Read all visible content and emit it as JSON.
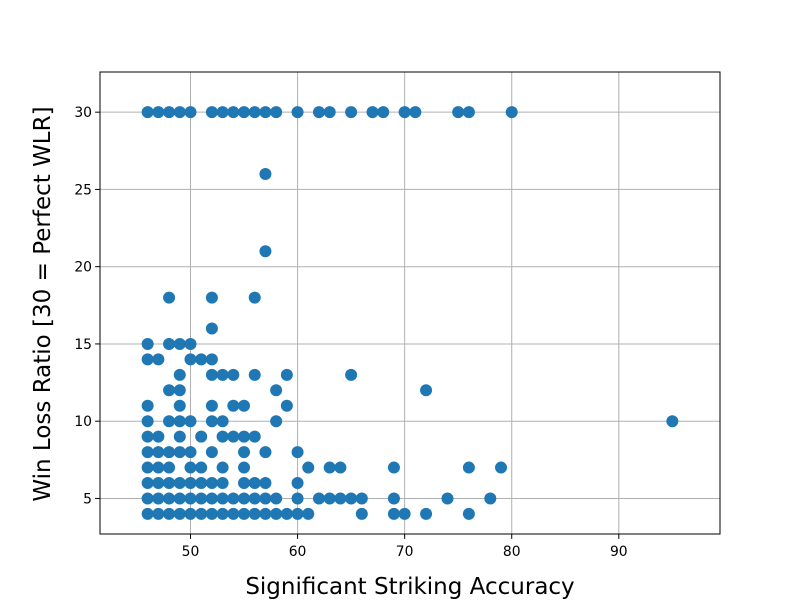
{
  "chart_data": {
    "type": "scatter",
    "title": "",
    "xlabel": "Significant Striking Accuracy",
    "ylabel": "Win Loss Ratio [30 = Perfect WLR]",
    "xlim": [
      41.55,
      99.45
    ],
    "ylim": [
      2.7,
      32.6
    ],
    "x_ticks": [
      50,
      60,
      70,
      80,
      90
    ],
    "y_ticks": [
      5,
      10,
      15,
      20,
      25,
      30
    ],
    "x_tick_labels": [
      "50",
      "60",
      "70",
      "80",
      "90"
    ],
    "y_tick_labels": [
      "5",
      "10",
      "15",
      "20",
      "25",
      "30"
    ],
    "grid": true,
    "marker_color": "#1f77b4",
    "points": [
      [
        46,
        30
      ],
      [
        47,
        30
      ],
      [
        48,
        30
      ],
      [
        49,
        30
      ],
      [
        50,
        30
      ],
      [
        52,
        30
      ],
      [
        53,
        30
      ],
      [
        54,
        30
      ],
      [
        55,
        30
      ],
      [
        56,
        30
      ],
      [
        57,
        30
      ],
      [
        58,
        30
      ],
      [
        60,
        30
      ],
      [
        62,
        30
      ],
      [
        63,
        30
      ],
      [
        65,
        30
      ],
      [
        67,
        30
      ],
      [
        68,
        30
      ],
      [
        70,
        30
      ],
      [
        71,
        30
      ],
      [
        75,
        30
      ],
      [
        76,
        30
      ],
      [
        80,
        30
      ],
      [
        57,
        26
      ],
      [
        57,
        21
      ],
      [
        48,
        18
      ],
      [
        52,
        18
      ],
      [
        56,
        18
      ],
      [
        52,
        16
      ],
      [
        46,
        15
      ],
      [
        48,
        15
      ],
      [
        49,
        15
      ],
      [
        50,
        15
      ],
      [
        46,
        14
      ],
      [
        47,
        14
      ],
      [
        50,
        14
      ],
      [
        51,
        14
      ],
      [
        52,
        14
      ],
      [
        49,
        13
      ],
      [
        52,
        13
      ],
      [
        53,
        13
      ],
      [
        54,
        13
      ],
      [
        56,
        13
      ],
      [
        59,
        13
      ],
      [
        65,
        13
      ],
      [
        48,
        12
      ],
      [
        49,
        12
      ],
      [
        58,
        12
      ],
      [
        72,
        12
      ],
      [
        46,
        11
      ],
      [
        49,
        11
      ],
      [
        52,
        11
      ],
      [
        54,
        11
      ],
      [
        55,
        11
      ],
      [
        59,
        11
      ],
      [
        46,
        10
      ],
      [
        48,
        10
      ],
      [
        49,
        10
      ],
      [
        50,
        10
      ],
      [
        52,
        10
      ],
      [
        53,
        10
      ],
      [
        58,
        10
      ],
      [
        95,
        10
      ],
      [
        46,
        9
      ],
      [
        47,
        9
      ],
      [
        49,
        9
      ],
      [
        51,
        9
      ],
      [
        53,
        9
      ],
      [
        54,
        9
      ],
      [
        55,
        9
      ],
      [
        56,
        9
      ],
      [
        46,
        8
      ],
      [
        47,
        8
      ],
      [
        48,
        8
      ],
      [
        49,
        8
      ],
      [
        50,
        8
      ],
      [
        52,
        8
      ],
      [
        55,
        8
      ],
      [
        57,
        8
      ],
      [
        60,
        8
      ],
      [
        46,
        7
      ],
      [
        47,
        7
      ],
      [
        48,
        7
      ],
      [
        50,
        7
      ],
      [
        51,
        7
      ],
      [
        53,
        7
      ],
      [
        55,
        7
      ],
      [
        61,
        7
      ],
      [
        63,
        7
      ],
      [
        64,
        7
      ],
      [
        69,
        7
      ],
      [
        76,
        7
      ],
      [
        79,
        7
      ],
      [
        46,
        6
      ],
      [
        47,
        6
      ],
      [
        48,
        6
      ],
      [
        49,
        6
      ],
      [
        50,
        6
      ],
      [
        51,
        6
      ],
      [
        52,
        6
      ],
      [
        53,
        6
      ],
      [
        55,
        6
      ],
      [
        56,
        6
      ],
      [
        57,
        6
      ],
      [
        60,
        6
      ],
      [
        46,
        5
      ],
      [
        47,
        5
      ],
      [
        48,
        5
      ],
      [
        49,
        5
      ],
      [
        50,
        5
      ],
      [
        51,
        5
      ],
      [
        52,
        5
      ],
      [
        53,
        5
      ],
      [
        54,
        5
      ],
      [
        55,
        5
      ],
      [
        56,
        5
      ],
      [
        57,
        5
      ],
      [
        58,
        5
      ],
      [
        60,
        5
      ],
      [
        62,
        5
      ],
      [
        63,
        5
      ],
      [
        64,
        5
      ],
      [
        65,
        5
      ],
      [
        66,
        5
      ],
      [
        69,
        5
      ],
      [
        74,
        5
      ],
      [
        78,
        5
      ],
      [
        46,
        4
      ],
      [
        47,
        4
      ],
      [
        48,
        4
      ],
      [
        49,
        4
      ],
      [
        50,
        4
      ],
      [
        51,
        4
      ],
      [
        52,
        4
      ],
      [
        53,
        4
      ],
      [
        54,
        4
      ],
      [
        55,
        4
      ],
      [
        56,
        4
      ],
      [
        57,
        4
      ],
      [
        58,
        4
      ],
      [
        59,
        4
      ],
      [
        60,
        4
      ],
      [
        61,
        4
      ],
      [
        66,
        4
      ],
      [
        69,
        4
      ],
      [
        70,
        4
      ],
      [
        72,
        4
      ],
      [
        76,
        4
      ]
    ]
  }
}
